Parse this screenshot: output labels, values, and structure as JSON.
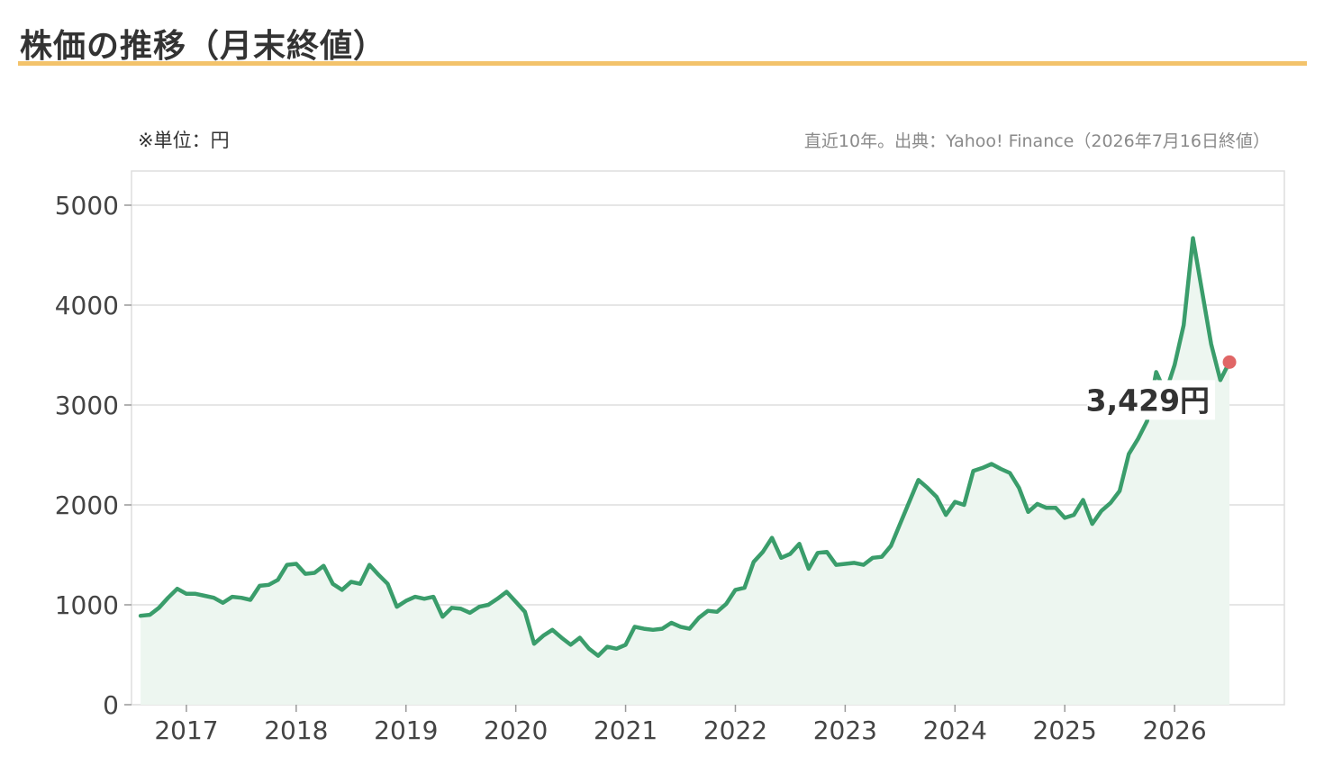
{
  "header": {
    "title": "株価の推移（月末終値）",
    "unit_note": "※単位：円",
    "source_note": "直近10年。出典：Yahoo! Finance（2026年7月16日終値）"
  },
  "colors": {
    "accent_rule": "#f3c36b",
    "line": "#3a9d6b",
    "area": "#edf6f0",
    "last_point": "#e06666",
    "grid": "#dddddd"
  },
  "chart_data": {
    "type": "area",
    "title": "株価の推移（月末終値）",
    "ylabel": "円",
    "ylim": [
      0,
      5000
    ],
    "yticks": [
      0,
      1000,
      2000,
      3000,
      4000,
      5000
    ],
    "xticks": [
      2017,
      2018,
      2019,
      2020,
      2021,
      2022,
      2023,
      2024,
      2025,
      2026
    ],
    "xlim": [
      2016.5,
      2027.0
    ],
    "grid": "horizontal",
    "x": [
      2016.583,
      2016.667,
      2016.75,
      2016.833,
      2016.917,
      2017.0,
      2017.083,
      2017.167,
      2017.25,
      2017.333,
      2017.417,
      2017.5,
      2017.583,
      2017.667,
      2017.75,
      2017.833,
      2017.917,
      2018.0,
      2018.083,
      2018.167,
      2018.25,
      2018.333,
      2018.417,
      2018.5,
      2018.583,
      2018.667,
      2018.75,
      2018.833,
      2018.917,
      2019.0,
      2019.083,
      2019.167,
      2019.25,
      2019.333,
      2019.417,
      2019.5,
      2019.583,
      2019.667,
      2019.75,
      2019.833,
      2019.917,
      2020.0,
      2020.083,
      2020.167,
      2020.25,
      2020.333,
      2020.417,
      2020.5,
      2020.583,
      2020.667,
      2020.75,
      2020.833,
      2020.917,
      2021.0,
      2021.083,
      2021.167,
      2021.25,
      2021.333,
      2021.417,
      2021.5,
      2021.583,
      2021.667,
      2021.75,
      2021.833,
      2021.917,
      2022.0,
      2022.083,
      2022.167,
      2022.25,
      2022.333,
      2022.417,
      2022.5,
      2022.583,
      2022.667,
      2022.75,
      2022.833,
      2022.917,
      2023.0,
      2023.083,
      2023.167,
      2023.25,
      2023.333,
      2023.417,
      2023.5,
      2023.583,
      2023.667,
      2023.75,
      2023.833,
      2023.917,
      2024.0,
      2024.083,
      2024.167,
      2024.25,
      2024.333,
      2024.417,
      2024.5,
      2024.583,
      2024.667,
      2024.75,
      2024.833,
      2024.917,
      2025.0,
      2025.083,
      2025.167,
      2025.25,
      2025.333,
      2025.417,
      2025.5,
      2025.583,
      2025.667,
      2025.75,
      2025.833,
      2025.917,
      2026.0,
      2026.083,
      2026.167,
      2026.25,
      2026.333,
      2026.417,
      2026.5
    ],
    "series": [
      {
        "values": [
          890,
          900,
          970,
          1070,
          1160,
          1110,
          1110,
          1090,
          1070,
          1020,
          1080,
          1070,
          1050,
          1190,
          1200,
          1250,
          1400,
          1410,
          1310,
          1320,
          1390,
          1210,
          1150,
          1230,
          1210,
          1400,
          1300,
          1210,
          980,
          1040,
          1080,
          1060,
          1080,
          880,
          970,
          960,
          920,
          980,
          1000,
          1060,
          1130,
          1030,
          930,
          610,
          690,
          750,
          670,
          600,
          670,
          560,
          490,
          580,
          560,
          600,
          780,
          760,
          750,
          760,
          820,
          780,
          760,
          870,
          940,
          930,
          1010,
          1150,
          1170,
          1430,
          1530,
          1670,
          1470,
          1510,
          1610,
          1360,
          1520,
          1530,
          1400,
          1410,
          1420,
          1400,
          1470,
          1480,
          1590,
          1810,
          2030,
          2250,
          2170,
          2080,
          1900,
          2030,
          2000,
          2340,
          2370,
          2410,
          2360,
          2320,
          2170,
          1930,
          2010,
          1970,
          1970,
          1870,
          1900,
          2050,
          1810,
          1940,
          2020,
          2140,
          2510,
          2660,
          2840,
          3330,
          3120,
          3400,
          3800,
          4670,
          4140,
          3610,
          3250,
          3429
        ]
      }
    ],
    "last_value_label": "3,429円"
  }
}
